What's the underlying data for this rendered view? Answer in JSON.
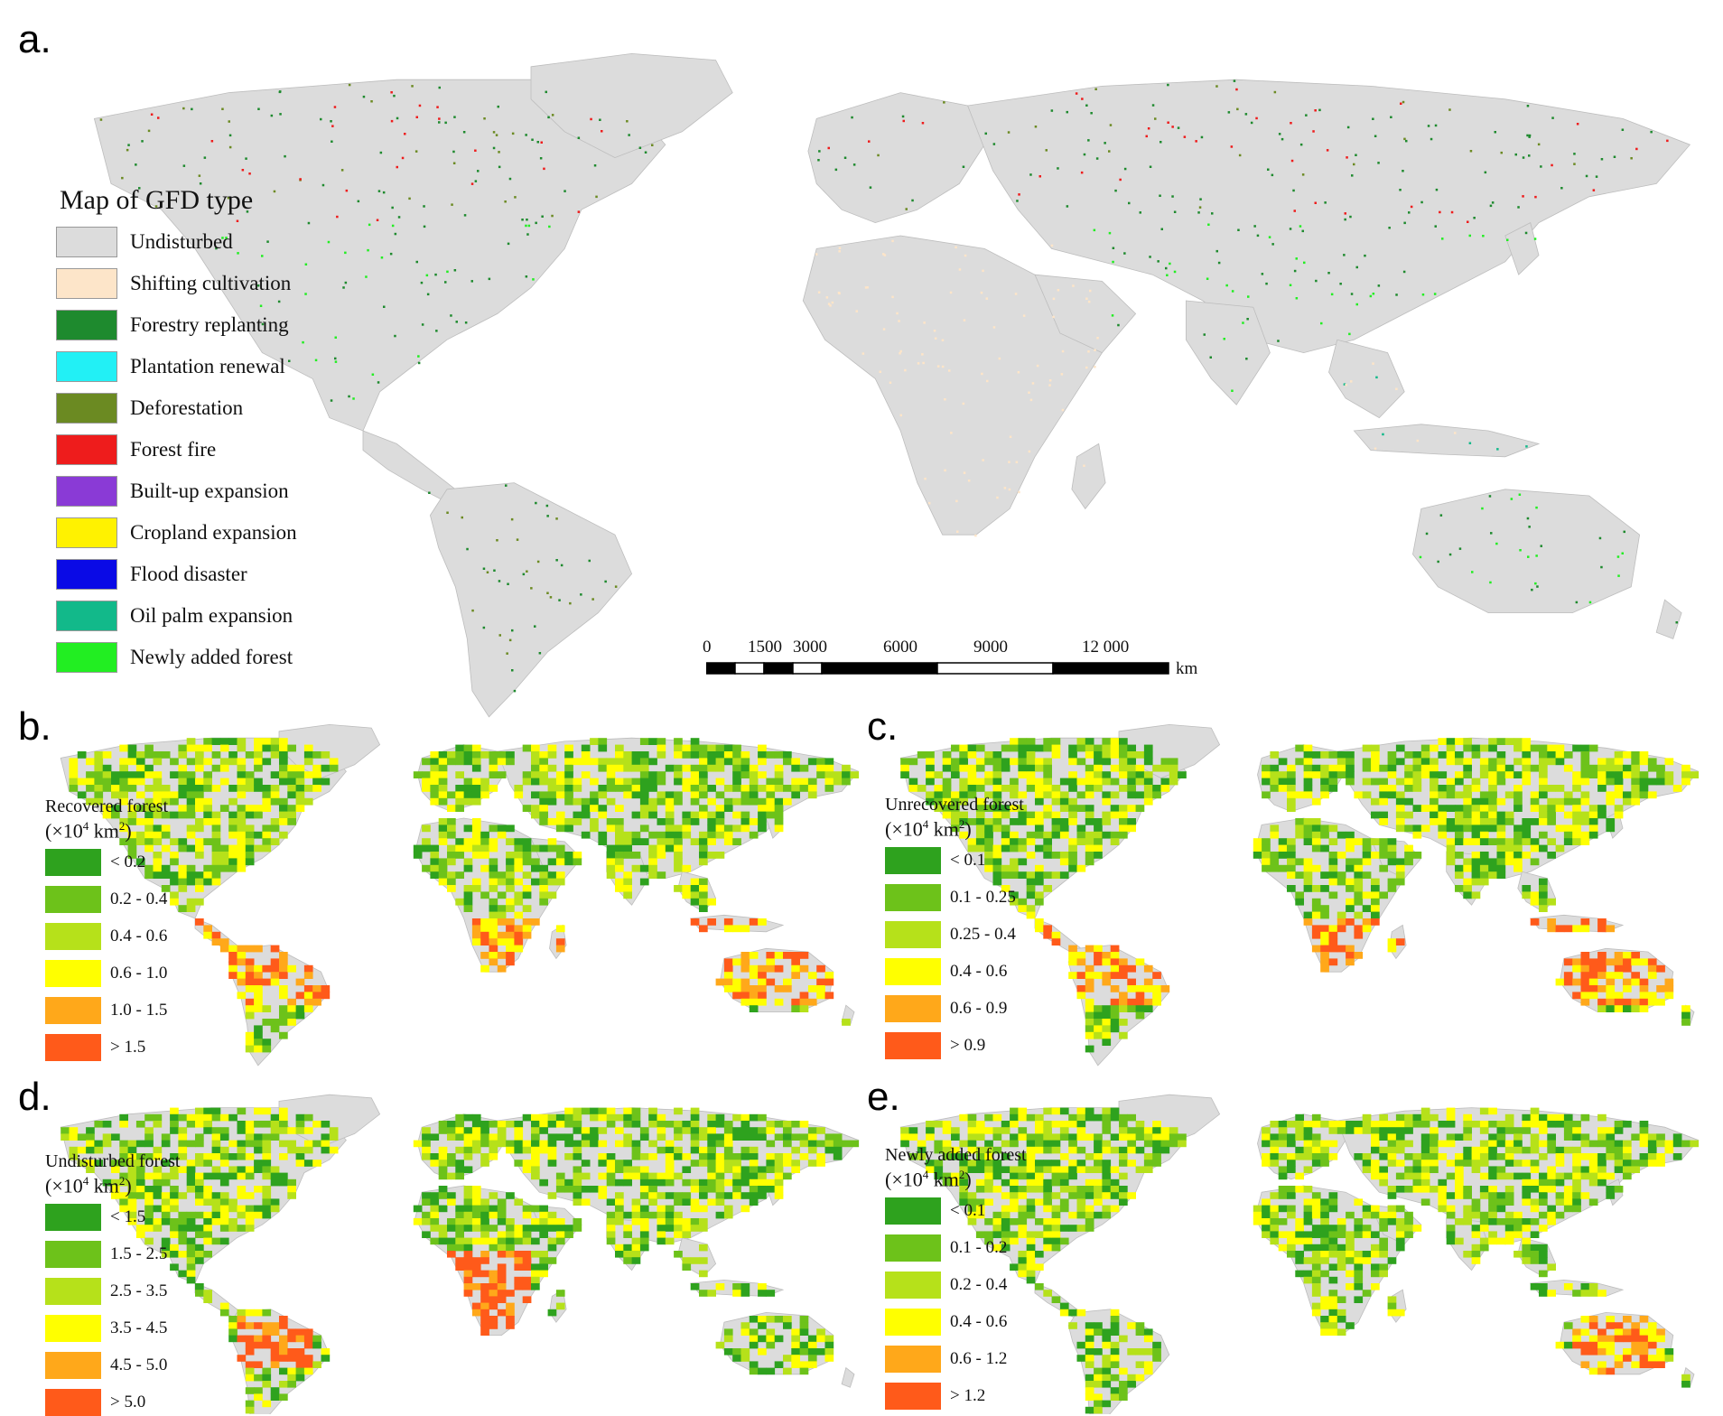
{
  "panels": {
    "a": {
      "letter": "a.",
      "legend": {
        "title": "Map of GFD type",
        "items": [
          {
            "label": "Undisturbed",
            "color": "#dcdcdc"
          },
          {
            "label": "Shifting cultivation",
            "color": "#fde5c9"
          },
          {
            "label": "Forestry replanting",
            "color": "#1e8a2e"
          },
          {
            "label": "Plantation renewal",
            "color": "#22f0f5"
          },
          {
            "label": "Deforestation",
            "color": "#6b8a22"
          },
          {
            "label": "Forest fire",
            "color": "#ee1c1c"
          },
          {
            "label": "Built-up expansion",
            "color": "#8a3ad6"
          },
          {
            "label": "Cropland expansion",
            "color": "#fff200"
          },
          {
            "label": "Flood disaster",
            "color": "#0a0ae6"
          },
          {
            "label": "Oil palm expansion",
            "color": "#12b98a"
          },
          {
            "label": "Newly added forest",
            "color": "#22ee22"
          }
        ]
      },
      "scalebar": {
        "labels": [
          "0",
          "1500",
          "3000",
          "6000",
          "9000",
          "12 000"
        ],
        "unit": "km"
      }
    },
    "b": {
      "letter": "b.",
      "legend": {
        "title": "Recovered forest",
        "unit_prefix": "(×10",
        "unit_exp": "4",
        "unit_mid": " km",
        "unit_exp2": "2",
        "unit_suffix": ")",
        "items": [
          {
            "label": "< 0.2",
            "color": "#2ea21e"
          },
          {
            "label": "0.2 - 0.4",
            "color": "#6dc21a"
          },
          {
            "label": "0.4 - 0.6",
            "color": "#b6e11a"
          },
          {
            "label": "0.6 - 1.0",
            "color": "#ffff00"
          },
          {
            "label": "1.0 - 1.5",
            "color": "#ffa81a"
          },
          {
            "label": "> 1.5",
            "color": "#ff5a1a"
          }
        ]
      }
    },
    "c": {
      "letter": "c.",
      "legend": {
        "title": "Unrecovered forest",
        "unit_prefix": "(×10",
        "unit_exp": "4",
        "unit_mid": " km",
        "unit_exp2": "2",
        "unit_suffix": ")",
        "items": [
          {
            "label": "< 0.1",
            "color": "#2ea21e"
          },
          {
            "label": "0.1 - 0.25",
            "color": "#6dc21a"
          },
          {
            "label": "0.25 - 0.4",
            "color": "#b6e11a"
          },
          {
            "label": "0.4 - 0.6",
            "color": "#ffff00"
          },
          {
            "label": "0.6 - 0.9",
            "color": "#ffa81a"
          },
          {
            "label": "> 0.9",
            "color": "#ff5a1a"
          }
        ]
      }
    },
    "d": {
      "letter": "d.",
      "legend": {
        "title": "Undisturbed forest",
        "unit_prefix": "(×10",
        "unit_exp": "4",
        "unit_mid": " km",
        "unit_exp2": "2",
        "unit_suffix": ")",
        "items": [
          {
            "label": "< 1.5",
            "color": "#2ea21e"
          },
          {
            "label": "1.5 - 2.5",
            "color": "#6dc21a"
          },
          {
            "label": "2.5 - 3.5",
            "color": "#b6e11a"
          },
          {
            "label": "3.5 - 4.5",
            "color": "#ffff00"
          },
          {
            "label": "4.5 - 5.0",
            "color": "#ffa81a"
          },
          {
            "label": "> 5.0",
            "color": "#ff5a1a"
          }
        ]
      }
    },
    "e": {
      "letter": "e.",
      "legend": {
        "title": "Newly added forest",
        "unit_prefix": "(×10",
        "unit_exp": "4",
        "unit_mid": " km",
        "unit_exp2": "2",
        "unit_suffix": ")",
        "items": [
          {
            "label": "< 0.1",
            "color": "#2ea21e"
          },
          {
            "label": "0.1 - 0.2",
            "color": "#6dc21a"
          },
          {
            "label": "0.2 - 0.4",
            "color": "#b6e11a"
          },
          {
            "label": "0.4 - 0.6",
            "color": "#ffff00"
          },
          {
            "label": "0.6 - 1.2",
            "color": "#ffa81a"
          },
          {
            "label": "> 1.2",
            "color": "#ff5a1a"
          }
        ]
      }
    }
  },
  "colors": {
    "land": "#dcdcdc",
    "grid_red": "#e53a1e"
  }
}
